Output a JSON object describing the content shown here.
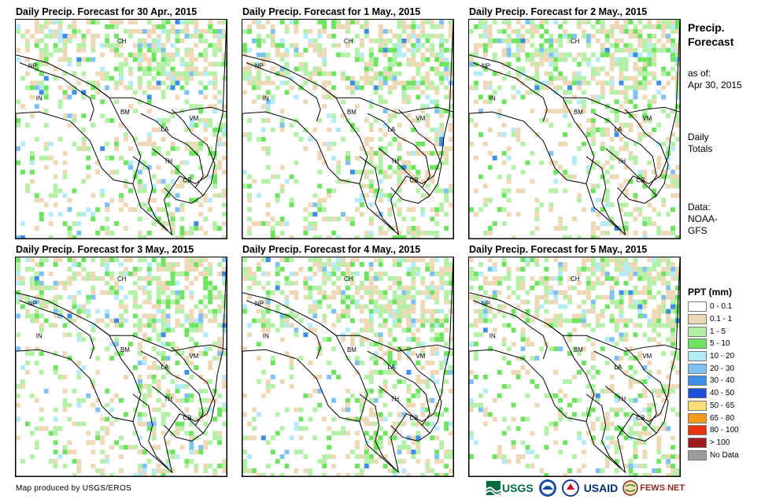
{
  "panels": [
    {
      "title": "Daily Precip. Forecast for 30 Apr., 2015"
    },
    {
      "title": "Daily Precip. Forecast for 1 May., 2015"
    },
    {
      "title": "Daily Precip. Forecast for 2 May., 2015"
    },
    {
      "title": "Daily Precip. Forecast for 3 May., 2015"
    },
    {
      "title": "Daily Precip. Forecast for 4 May., 2015"
    },
    {
      "title": "Daily Precip. Forecast for 5 May., 2015"
    }
  ],
  "country_labels": [
    "CH",
    "NP",
    "IN",
    "BM",
    "LA",
    "VM",
    "TH",
    "CB"
  ],
  "sidebar": {
    "title_line1": "Precip.",
    "title_line2": "Forecast",
    "asof_line1": "as of:",
    "asof_line2": "Apr 30, 2015",
    "totals_line1": "Daily",
    "totals_line2": "Totals",
    "data_line1": "Data:",
    "data_line2": "NOAA-",
    "data_line3": "GFS"
  },
  "legend": {
    "title": "PPT (mm)",
    "items": [
      {
        "label": "0 - 0.1",
        "color": "#ffffff"
      },
      {
        "label": "0.1 - 1",
        "color": "#eed9b6"
      },
      {
        "label": "1 - 5",
        "color": "#b5f0a8"
      },
      {
        "label": "5 - 10",
        "color": "#6de35f"
      },
      {
        "label": "10 - 20",
        "color": "#b3ecf7"
      },
      {
        "label": "20 - 30",
        "color": "#7ec1f2"
      },
      {
        "label": "30 - 40",
        "color": "#3d8de6"
      },
      {
        "label": "40 - 50",
        "color": "#1f4fd6"
      },
      {
        "label": "50 - 65",
        "color": "#fbe07a"
      },
      {
        "label": "65 - 80",
        "color": "#f59a16"
      },
      {
        "label": "80 - 100",
        "color": "#e8320c"
      },
      {
        "label": "> 100",
        "color": "#a01c1c"
      },
      {
        "label": "No Data",
        "color": "#9c9c9c"
      }
    ]
  },
  "footer": {
    "credit": "Map produced by USGS/EROS"
  },
  "logos": {
    "usgs": "USGS",
    "usaid": "USAID",
    "fewsnet": "FEWS NET"
  }
}
